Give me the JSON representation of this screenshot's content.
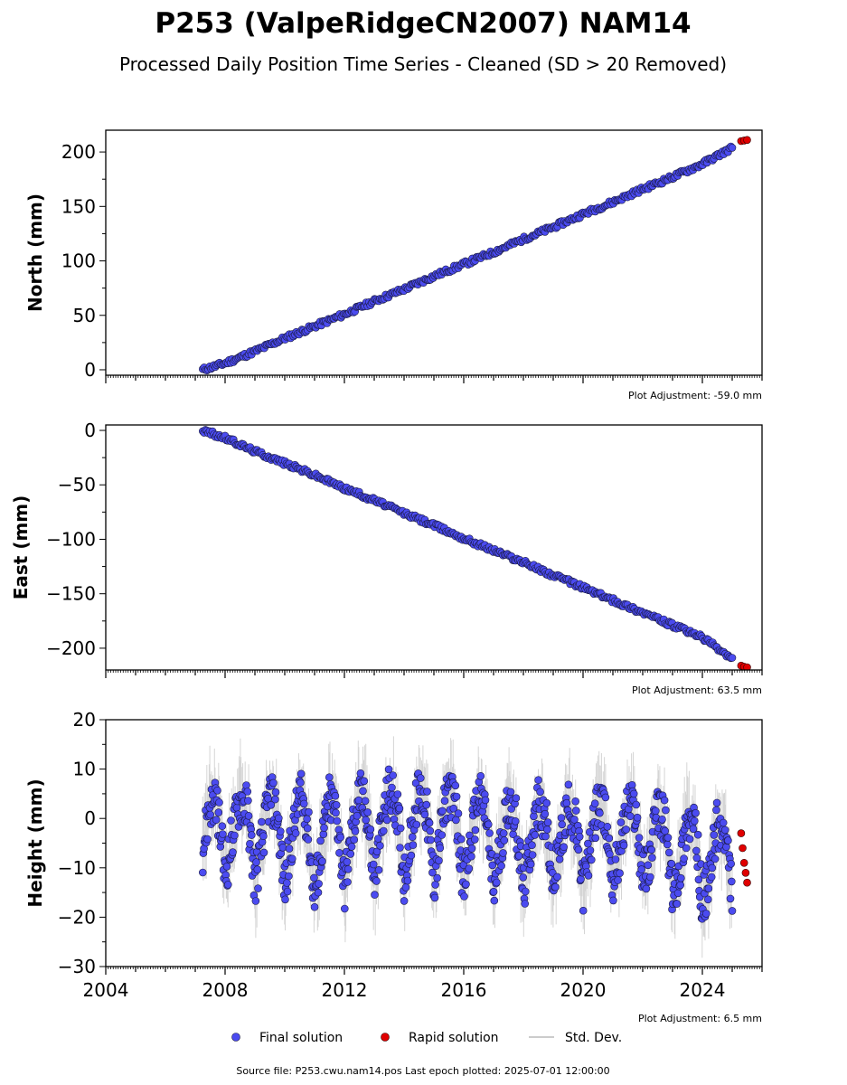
{
  "figure": {
    "title": "P253 (ValpeRidgeCN2007) NAM14",
    "subtitle": "Processed Daily Position Time Series - Cleaned (SD > 20 Removed)",
    "source_note": "Source file: P253.cwu.nam14.pos  Last epoch plotted: 2025-07-01 12:00:00"
  },
  "legend": {
    "placement": "bottom-center",
    "final_label": "Final solution",
    "rapid_label": "Rapid solution",
    "std_label": "Std. Dev."
  },
  "colors": {
    "final": "#4b4bf0",
    "final_edge": "#1a1a40",
    "rapid": "#e00000",
    "std": "#888888"
  },
  "chart_data": [
    {
      "type": "scatter",
      "ylabel": "North (mm)",
      "adjustment": "Plot Adjustment: -59.0 mm",
      "xlim": [
        2004,
        2026
      ],
      "ylim": [
        -5,
        220
      ],
      "yticks": [
        0,
        50,
        100,
        150,
        200
      ],
      "ytick_labels": [
        "0",
        "50",
        "100",
        "150",
        "200"
      ],
      "grid": false,
      "series": [
        {
          "name": "Final solution",
          "x": [
            2007.25,
            2008.0,
            2009.0,
            2010.0,
            2011.0,
            2012.0,
            2013.0,
            2014.0,
            2015.0,
            2016.0,
            2017.0,
            2018.0,
            2019.0,
            2020.0,
            2021.0,
            2022.0,
            2023.0,
            2024.0,
            2025.0
          ],
          "y": [
            0,
            6,
            17,
            29,
            40,
            51,
            63,
            74,
            86,
            97,
            108,
            120,
            131,
            143,
            154,
            166,
            177,
            189,
            204
          ]
        },
        {
          "name": "Rapid solution",
          "x": [
            2025.3,
            2025.4,
            2025.5
          ],
          "y": [
            210,
            210.5,
            211
          ]
        }
      ]
    },
    {
      "type": "scatter",
      "ylabel": "East (mm)",
      "adjustment": "Plot Adjustment: 63.5 mm",
      "xlim": [
        2004,
        2026
      ],
      "ylim": [
        -220,
        5
      ],
      "yticks": [
        0,
        -50,
        -100,
        -150,
        -200
      ],
      "ytick_labels": [
        "0",
        "−50",
        "−100",
        "−150",
        "−200"
      ],
      "grid": false,
      "series": [
        {
          "name": "Final solution",
          "x": [
            2007.25,
            2008.0,
            2009.0,
            2010.0,
            2011.0,
            2012.0,
            2013.0,
            2014.0,
            2015.0,
            2016.0,
            2017.0,
            2018.0,
            2019.0,
            2020.0,
            2021.0,
            2022.0,
            2023.0,
            2024.0,
            2025.0
          ],
          "y": [
            0,
            -7,
            -19,
            -30,
            -41,
            -53,
            -64,
            -76,
            -87,
            -99,
            -110,
            -121,
            -133,
            -144,
            -156,
            -167,
            -179,
            -190,
            -210
          ]
        },
        {
          "name": "Rapid solution",
          "x": [
            2025.3,
            2025.4,
            2025.5
          ],
          "y": [
            -216,
            -217,
            -217.5
          ]
        }
      ]
    },
    {
      "type": "scatter",
      "ylabel": "Height (mm)",
      "adjustment": "Plot Adjustment: 6.5 mm",
      "xlim": [
        2004,
        2026
      ],
      "ylim": [
        -30,
        20
      ],
      "yticks": [
        20,
        10,
        0,
        -10,
        -20,
        -30
      ],
      "ytick_labels": [
        "20",
        "10",
        "0",
        "−10",
        "−20",
        "−30"
      ],
      "xticks": [
        2004,
        2008,
        2012,
        2016,
        2020,
        2024
      ],
      "xtick_labels": [
        "2004",
        "2008",
        "2012",
        "2016",
        "2020",
        "2024"
      ],
      "grid": false,
      "series": [
        {
          "name": "Final solution",
          "x": [
            2007.25,
            2007.5,
            2007.75,
            2008.0,
            2008.25,
            2008.5,
            2008.75,
            2009.0,
            2009.25,
            2009.5,
            2009.75,
            2010.0,
            2010.25,
            2010.5,
            2010.75,
            2011.0,
            2011.25,
            2011.5,
            2011.75,
            2012.0,
            2012.25,
            2012.5,
            2012.75,
            2013.0,
            2013.25,
            2013.5,
            2013.75,
            2014.0,
            2014.25,
            2014.5,
            2014.75,
            2015.0,
            2015.25,
            2015.5,
            2015.75,
            2016.0,
            2016.25,
            2016.5,
            2016.75,
            2017.0,
            2017.25,
            2017.5,
            2017.75,
            2018.0,
            2018.25,
            2018.5,
            2018.75,
            2019.0,
            2019.25,
            2019.5,
            2019.75,
            2020.0,
            2020.25,
            2020.5,
            2020.75,
            2021.0,
            2021.25,
            2021.5,
            2021.75,
            2022.0,
            2022.25,
            2022.5,
            2022.75,
            2023.0,
            2023.25,
            2023.5,
            2023.75,
            2024.0,
            2024.25,
            2024.5,
            2024.75,
            2025.0
          ],
          "y": [
            -6,
            3,
            2,
            -12,
            -3,
            4,
            2,
            -13,
            -4,
            5,
            1,
            -14,
            -4,
            5,
            0,
            -16,
            -5,
            4,
            1,
            -14,
            -3,
            5,
            2,
            -13,
            -2,
            6,
            3,
            -12,
            -3,
            6,
            2,
            -13,
            -2,
            7,
            1,
            -14,
            -4,
            5,
            1,
            -15,
            -5,
            4,
            0,
            -15,
            -5,
            3,
            0,
            -14,
            -5,
            3,
            -1,
            -14,
            -6,
            3,
            0,
            -13,
            -6,
            3,
            2,
            -12,
            -8,
            2,
            -1,
            -16,
            -10,
            0,
            -2,
            -17,
            -12,
            -1,
            -4,
            -15
          ]
        },
        {
          "name": "Rapid solution",
          "x": [
            2025.3,
            2025.35,
            2025.4,
            2025.45,
            2025.5
          ],
          "y": [
            -3,
            -6,
            -9,
            -11,
            -13
          ]
        }
      ]
    }
  ]
}
